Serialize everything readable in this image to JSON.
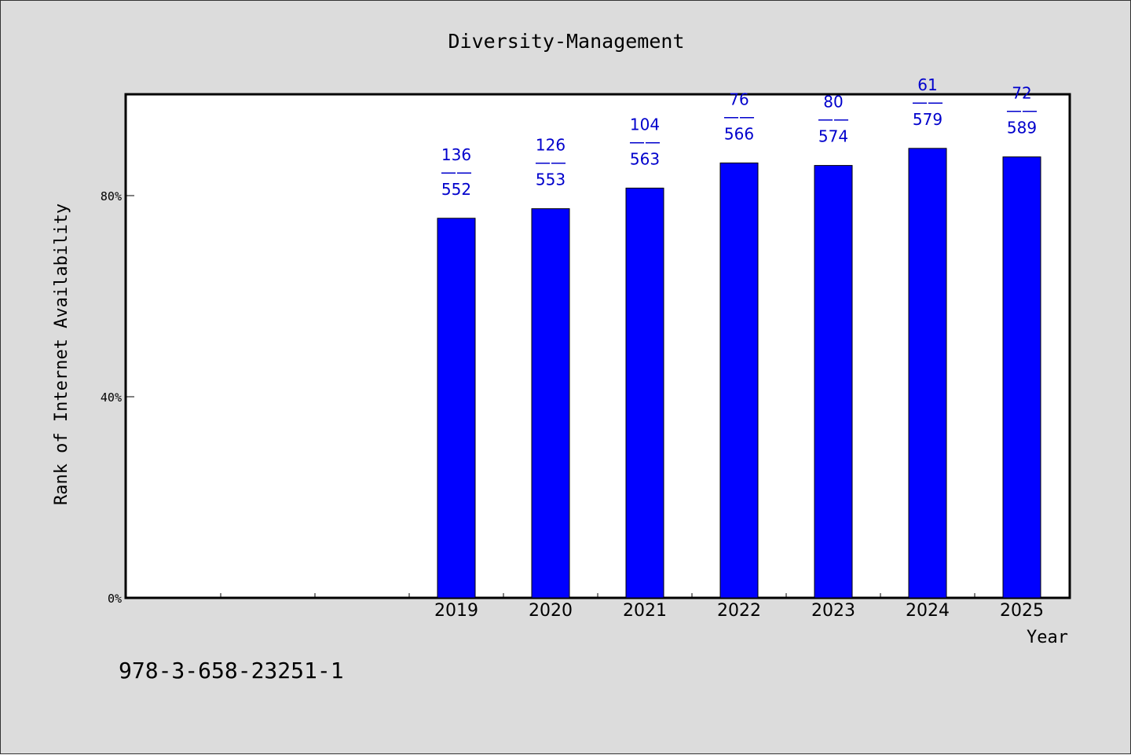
{
  "chart_data": {
    "type": "bar",
    "title": "Diversity-Management",
    "xlabel": "Year",
    "ylabel": "Rank of Internet Availability",
    "ylim": [
      0,
      100
    ],
    "yticks": [
      {
        "value": 0,
        "label": "0%"
      },
      {
        "value": 40,
        "label": "40%"
      },
      {
        "value": 80,
        "label": "80%"
      }
    ],
    "categories": [
      "",
      "",
      "",
      "2019",
      "2020",
      "2021",
      "2022",
      "2023",
      "2024",
      "2025"
    ],
    "values": [
      null,
      null,
      null,
      75.5,
      77.4,
      81.5,
      86.5,
      86.0,
      89.4,
      87.7
    ],
    "data_labels": [
      null,
      null,
      null,
      {
        "top": "136",
        "sep": "——",
        "bottom": "552"
      },
      {
        "top": "126",
        "sep": "——",
        "bottom": "553"
      },
      {
        "top": "104",
        "sep": "——",
        "bottom": "563"
      },
      {
        "top": "76",
        "sep": "——",
        "bottom": "566"
      },
      {
        "top": "80",
        "sep": "——",
        "bottom": "574"
      },
      {
        "top": "61",
        "sep": "——",
        "bottom": "579"
      },
      {
        "top": "72",
        "sep": "——",
        "bottom": "589"
      }
    ],
    "grid": false,
    "bar_color": "#0000ff",
    "label_color": "#0000cc"
  },
  "footer_text": "978-3-658-23251-1"
}
